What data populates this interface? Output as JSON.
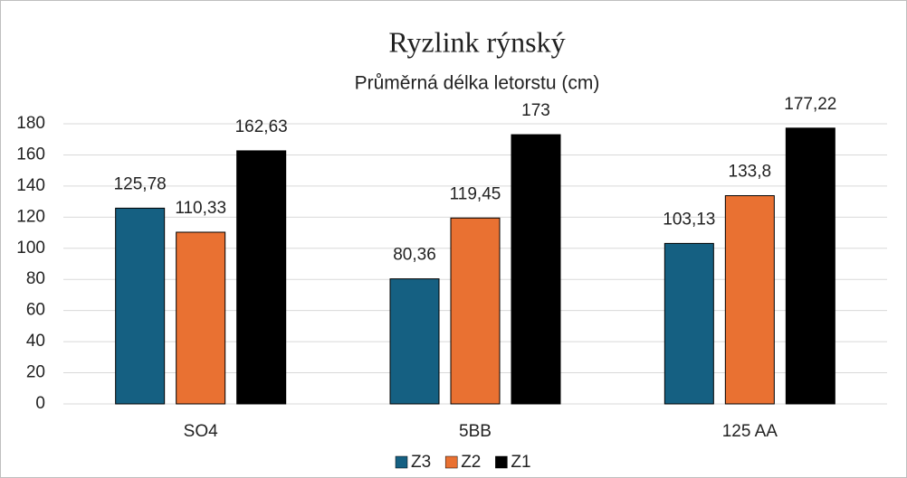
{
  "chart_data": {
    "type": "bar",
    "title": "Ryzlink rýnský",
    "subtitle": "Průměrná délka letorstu (cm)",
    "categories": [
      "SO4",
      "5BB",
      "125 AA"
    ],
    "series": [
      {
        "name": "Z3",
        "color": "#156082",
        "values": [
          125.78,
          80.36,
          103.13
        ],
        "value_labels": [
          "125,78",
          "80,36",
          "103,13"
        ]
      },
      {
        "name": "Z2",
        "color": "#e97132",
        "values": [
          110.33,
          119.45,
          133.8
        ],
        "value_labels": [
          "110,33",
          "119,45",
          "133,8"
        ]
      },
      {
        "name": "Z1",
        "color": "#000000",
        "values": [
          162.63,
          173,
          177.22
        ],
        "value_labels": [
          "162,63",
          "173",
          "177,22"
        ]
      }
    ],
    "ylim": [
      0,
      180
    ],
    "yticks": [
      0,
      20,
      40,
      60,
      80,
      100,
      120,
      140,
      160,
      180
    ],
    "grid": true,
    "legend": "bottom"
  }
}
